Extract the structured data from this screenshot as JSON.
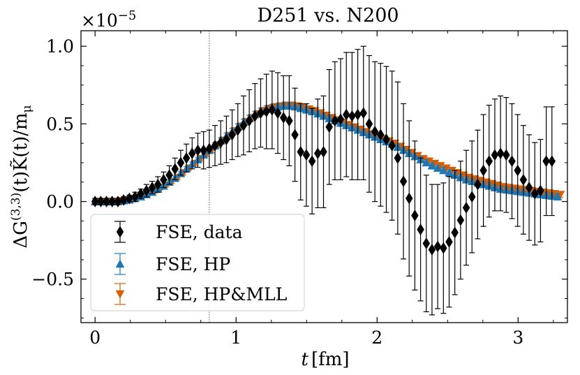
{
  "chart_data": {
    "type": "scatter",
    "title": "D251 vs. N200",
    "xlabel_var": "t",
    "xlabel_unit": "[fm]",
    "ylabel": "ΔG⁽³ʸ³⁾(t)K̃(t)/mμ",
    "ylabel_main": "ΔG",
    "ylabel_sup": "(3,3)",
    "ylabel_rest": "(t)K̃(t)/m",
    "ylabel_sub": "μ",
    "y_scale_main": "×10",
    "y_scale_exp": "−5",
    "xlim": [
      -0.1,
      3.35
    ],
    "ylim": [
      -0.78,
      1.1
    ],
    "x_ticks": [
      0,
      1,
      2,
      3
    ],
    "x_tick_labels": [
      "0",
      "1",
      "2",
      "3"
    ],
    "y_ticks": [
      -0.5,
      0.0,
      0.5,
      1.0
    ],
    "y_tick_labels": [
      "−0.5",
      "0.0",
      "0.5",
      "1.0"
    ],
    "vline_x": 0.81,
    "legend_position": "lower-left",
    "series": [
      {
        "name": "FSE, data",
        "color": "#000000",
        "marker": "diamond",
        "x": [
          0.0,
          0.0405,
          0.081,
          0.1215,
          0.162,
          0.2025,
          0.243,
          0.2835,
          0.324,
          0.3645,
          0.405,
          0.4455,
          0.486,
          0.5265,
          0.567,
          0.6075,
          0.648,
          0.6885,
          0.729,
          0.7695,
          0.81,
          0.8505,
          0.891,
          0.9315,
          0.972,
          1.0125,
          1.053,
          1.0935,
          1.134,
          1.1745,
          1.215,
          1.2555,
          1.296,
          1.3365,
          1.377,
          1.4175,
          1.458,
          1.4985,
          1.539,
          1.5795,
          1.62,
          1.6605,
          1.701,
          1.7415,
          1.782,
          1.8225,
          1.863,
          1.9035,
          1.944,
          1.9845,
          2.025,
          2.0655,
          2.106,
          2.1465,
          2.187,
          2.2275,
          2.268,
          2.3085,
          2.349,
          2.3895,
          2.43,
          2.4705,
          2.511,
          2.5515,
          2.592,
          2.6325,
          2.673,
          2.7135,
          2.754,
          2.7945,
          2.835,
          2.8755,
          2.916,
          2.9565,
          2.997,
          3.0375,
          3.078,
          3.1185,
          3.159,
          3.1995,
          3.24
        ],
        "y": [
          0.0,
          0.0,
          0.0,
          0.0,
          0.0,
          0.01,
          0.02,
          0.03,
          0.05,
          0.07,
          0.09,
          0.11,
          0.14,
          0.17,
          0.21,
          0.25,
          0.28,
          0.31,
          0.33,
          0.33,
          0.34,
          0.36,
          0.38,
          0.4,
          0.43,
          0.46,
          0.49,
          0.52,
          0.55,
          0.57,
          0.58,
          0.59,
          0.57,
          0.54,
          0.52,
          0.43,
          0.32,
          0.3,
          0.26,
          0.31,
          0.32,
          0.48,
          0.52,
          0.53,
          0.56,
          0.55,
          0.56,
          0.57,
          0.5,
          0.45,
          0.43,
          0.4,
          0.36,
          0.28,
          0.13,
          0.02,
          -0.09,
          -0.18,
          -0.27,
          -0.31,
          -0.29,
          -0.3,
          -0.26,
          -0.2,
          -0.12,
          -0.04,
          0.03,
          0.11,
          0.2,
          0.26,
          0.3,
          0.31,
          0.3,
          0.26,
          0.2,
          0.14,
          0.09,
          0.05,
          0.07,
          0.26,
          0.26
        ],
        "err": [
          0.02,
          0.02,
          0.02,
          0.02,
          0.02,
          0.02,
          0.02,
          0.03,
          0.03,
          0.04,
          0.04,
          0.05,
          0.05,
          0.06,
          0.07,
          0.08,
          0.09,
          0.1,
          0.11,
          0.12,
          0.12,
          0.13,
          0.14,
          0.15,
          0.16,
          0.17,
          0.19,
          0.2,
          0.21,
          0.22,
          0.24,
          0.25,
          0.26,
          0.27,
          0.29,
          0.3,
          0.31,
          0.33,
          0.34,
          0.35,
          0.36,
          0.37,
          0.38,
          0.39,
          0.4,
          0.41,
          0.42,
          0.43,
          0.44,
          0.45,
          0.46,
          0.47,
          0.48,
          0.49,
          0.5,
          0.5,
          0.48,
          0.46,
          0.44,
          0.42,
          0.4,
          0.42,
          0.42,
          0.4,
          0.38,
          0.37,
          0.36,
          0.35,
          0.36,
          0.36,
          0.36,
          0.37,
          0.37,
          0.37,
          0.36,
          0.35,
          0.34,
          0.33,
          0.33,
          0.35,
          0.35
        ]
      },
      {
        "name": "FSE, HP",
        "color": "#1f77b4",
        "marker": "triangle-up",
        "x": [
          0.0,
          0.0405,
          0.081,
          0.1215,
          0.162,
          0.2025,
          0.243,
          0.2835,
          0.324,
          0.3645,
          0.405,
          0.4455,
          0.486,
          0.5265,
          0.567,
          0.6075,
          0.648,
          0.6885,
          0.729,
          0.7695,
          0.81,
          0.8505,
          0.891,
          0.9315,
          0.972,
          1.0125,
          1.053,
          1.0935,
          1.134,
          1.1745,
          1.215,
          1.2555,
          1.296,
          1.3365,
          1.377,
          1.4175,
          1.458,
          1.4985,
          1.539,
          1.5795,
          1.62,
          1.6605,
          1.701,
          1.7415,
          1.782,
          1.8225,
          1.863,
          1.9035,
          1.944,
          1.9845,
          2.025,
          2.0655,
          2.106,
          2.1465,
          2.187,
          2.2275,
          2.268,
          2.3085,
          2.349,
          2.3895,
          2.43,
          2.4705,
          2.511,
          2.5515,
          2.592,
          2.6325,
          2.673,
          2.7135,
          2.754,
          2.7945,
          2.835,
          2.8755,
          2.916,
          2.9565,
          2.997,
          3.0375,
          3.078,
          3.1185,
          3.159,
          3.1995,
          3.24,
          3.2805
        ],
        "y": [
          0.0,
          0.0,
          0.0,
          0.0,
          0.0,
          0.005,
          0.01,
          0.02,
          0.03,
          0.045,
          0.06,
          0.08,
          0.1,
          0.125,
          0.15,
          0.18,
          0.21,
          0.24,
          0.27,
          0.3,
          0.33,
          0.36,
          0.39,
          0.42,
          0.45,
          0.48,
          0.51,
          0.535,
          0.56,
          0.58,
          0.595,
          0.605,
          0.61,
          0.615,
          0.615,
          0.61,
          0.6,
          0.59,
          0.58,
          0.565,
          0.55,
          0.535,
          0.52,
          0.505,
          0.49,
          0.475,
          0.46,
          0.445,
          0.43,
          0.415,
          0.4,
          0.385,
          0.37,
          0.35,
          0.33,
          0.31,
          0.29,
          0.27,
          0.25,
          0.23,
          0.215,
          0.2,
          0.185,
          0.17,
          0.155,
          0.14,
          0.13,
          0.12,
          0.11,
          0.1,
          0.09,
          0.08,
          0.075,
          0.07,
          0.065,
          0.06,
          0.055,
          0.05,
          0.045,
          0.04,
          0.035,
          0.03
        ],
        "err": [
          0.01,
          0.01,
          0.01,
          0.01,
          0.01,
          0.01,
          0.01,
          0.01,
          0.01,
          0.01,
          0.01,
          0.01,
          0.01,
          0.015,
          0.015,
          0.015,
          0.015,
          0.015,
          0.015,
          0.015,
          0.02,
          0.02,
          0.02,
          0.02,
          0.02,
          0.02,
          0.02,
          0.02,
          0.02,
          0.02,
          0.02,
          0.02,
          0.02,
          0.02,
          0.02,
          0.02,
          0.02,
          0.02,
          0.02,
          0.02,
          0.02,
          0.02,
          0.02,
          0.02,
          0.02,
          0.02,
          0.02,
          0.02,
          0.02,
          0.02,
          0.02,
          0.02,
          0.02,
          0.02,
          0.02,
          0.02,
          0.02,
          0.02,
          0.02,
          0.02,
          0.02,
          0.02,
          0.02,
          0.02,
          0.02,
          0.02,
          0.02,
          0.02,
          0.02,
          0.02,
          0.02,
          0.02,
          0.02,
          0.02,
          0.02,
          0.02,
          0.02,
          0.02,
          0.02,
          0.02,
          0.02,
          0.02
        ]
      },
      {
        "name": "FSE, HP&MLL",
        "color": "#d95f02",
        "marker": "triangle-down",
        "x": [
          0.02,
          0.0605,
          0.101,
          0.1415,
          0.182,
          0.2225,
          0.263,
          0.3035,
          0.344,
          0.3845,
          0.425,
          0.4655,
          0.506,
          0.5465,
          0.587,
          0.6275,
          0.668,
          0.7085,
          0.749,
          0.7895,
          0.83,
          0.8705,
          0.911,
          0.9515,
          0.992,
          1.0325,
          1.073,
          1.1135,
          1.154,
          1.1945,
          1.235,
          1.2755,
          1.316,
          1.3565,
          1.397,
          1.4375,
          1.478,
          1.5185,
          1.559,
          1.5995,
          1.64,
          1.6805,
          1.721,
          1.7615,
          1.802,
          1.8425,
          1.883,
          1.9235,
          1.964,
          2.0045,
          2.045,
          2.0855,
          2.126,
          2.1665,
          2.207,
          2.2475,
          2.288,
          2.3285,
          2.369,
          2.4095,
          2.45,
          2.4905,
          2.531,
          2.5715,
          2.612,
          2.6525,
          2.693,
          2.7335,
          2.774,
          2.8145,
          2.855,
          2.8955,
          2.936,
          2.9765,
          3.017,
          3.0575,
          3.098,
          3.1385,
          3.179,
          3.2195,
          3.26,
          3.3005
        ],
        "y": [
          0.0,
          0.0,
          0.0,
          0.0,
          0.005,
          0.01,
          0.015,
          0.025,
          0.035,
          0.05,
          0.065,
          0.085,
          0.105,
          0.13,
          0.155,
          0.185,
          0.215,
          0.245,
          0.275,
          0.305,
          0.335,
          0.365,
          0.395,
          0.425,
          0.455,
          0.485,
          0.515,
          0.54,
          0.565,
          0.585,
          0.6,
          0.61,
          0.615,
          0.62,
          0.62,
          0.615,
          0.605,
          0.595,
          0.585,
          0.57,
          0.555,
          0.54,
          0.525,
          0.51,
          0.495,
          0.48,
          0.465,
          0.45,
          0.435,
          0.42,
          0.405,
          0.39,
          0.375,
          0.355,
          0.335,
          0.315,
          0.295,
          0.275,
          0.26,
          0.245,
          0.23,
          0.215,
          0.2,
          0.185,
          0.17,
          0.155,
          0.145,
          0.135,
          0.125,
          0.115,
          0.105,
          0.095,
          0.09,
          0.085,
          0.08,
          0.075,
          0.07,
          0.065,
          0.06,
          0.055,
          0.05,
          0.045
        ],
        "err": [
          0.01,
          0.01,
          0.01,
          0.01,
          0.01,
          0.01,
          0.01,
          0.01,
          0.01,
          0.01,
          0.01,
          0.01,
          0.01,
          0.015,
          0.015,
          0.015,
          0.015,
          0.015,
          0.015,
          0.015,
          0.02,
          0.02,
          0.02,
          0.02,
          0.02,
          0.02,
          0.02,
          0.02,
          0.02,
          0.02,
          0.02,
          0.02,
          0.02,
          0.02,
          0.02,
          0.02,
          0.02,
          0.02,
          0.02,
          0.02,
          0.02,
          0.02,
          0.02,
          0.02,
          0.02,
          0.02,
          0.02,
          0.02,
          0.02,
          0.02,
          0.02,
          0.02,
          0.02,
          0.02,
          0.02,
          0.02,
          0.02,
          0.02,
          0.02,
          0.02,
          0.02,
          0.02,
          0.02,
          0.02,
          0.02,
          0.02,
          0.02,
          0.02,
          0.02,
          0.02,
          0.02,
          0.02,
          0.02,
          0.02,
          0.02,
          0.02,
          0.02,
          0.02,
          0.02,
          0.02,
          0.02,
          0.02
        ]
      }
    ]
  }
}
